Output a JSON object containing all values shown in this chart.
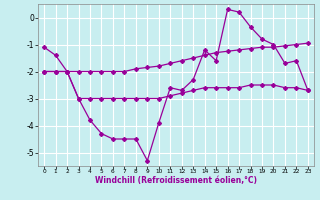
{
  "title": "",
  "xlabel": "Windchill (Refroidissement éolien,°C)",
  "background_color": "#c8eef0",
  "grid_color": "#ffffff",
  "line_color": "#990099",
  "x_hours": [
    0,
    1,
    2,
    3,
    4,
    5,
    6,
    7,
    8,
    9,
    10,
    11,
    12,
    13,
    14,
    15,
    16,
    17,
    18,
    19,
    20,
    21,
    22,
    23
  ],
  "series1": [
    -1.1,
    -1.4,
    -2.0,
    -3.0,
    -3.8,
    -4.3,
    -4.5,
    -4.5,
    -4.5,
    -5.3,
    -3.9,
    -2.6,
    -2.7,
    -2.3,
    -1.2,
    -1.6,
    0.3,
    0.2,
    -0.35,
    -0.8,
    -1.0,
    -1.7,
    -1.6,
    -2.7
  ],
  "series2": [
    -2.0,
    -2.0,
    -2.0,
    -3.0,
    -3.0,
    -3.0,
    -3.0,
    -3.0,
    -3.0,
    -3.0,
    -3.0,
    -2.9,
    -2.8,
    -2.7,
    -2.6,
    -2.6,
    -2.6,
    -2.6,
    -2.5,
    -2.5,
    -2.5,
    -2.6,
    -2.6,
    -2.7
  ],
  "series3": [
    -2.0,
    -2.0,
    -2.0,
    -2.0,
    -2.0,
    -2.0,
    -2.0,
    -2.0,
    -1.9,
    -1.85,
    -1.8,
    -1.7,
    -1.6,
    -1.5,
    -1.4,
    -1.3,
    -1.25,
    -1.2,
    -1.15,
    -1.1,
    -1.1,
    -1.05,
    -1.0,
    -0.95
  ],
  "ylim": [
    -5.5,
    0.5
  ],
  "yticks": [
    0,
    -1,
    -2,
    -3,
    -4,
    -5
  ],
  "xticks": [
    0,
    1,
    2,
    3,
    4,
    5,
    6,
    7,
    8,
    9,
    10,
    11,
    12,
    13,
    14,
    15,
    16,
    17,
    18,
    19,
    20,
    21,
    22,
    23
  ]
}
